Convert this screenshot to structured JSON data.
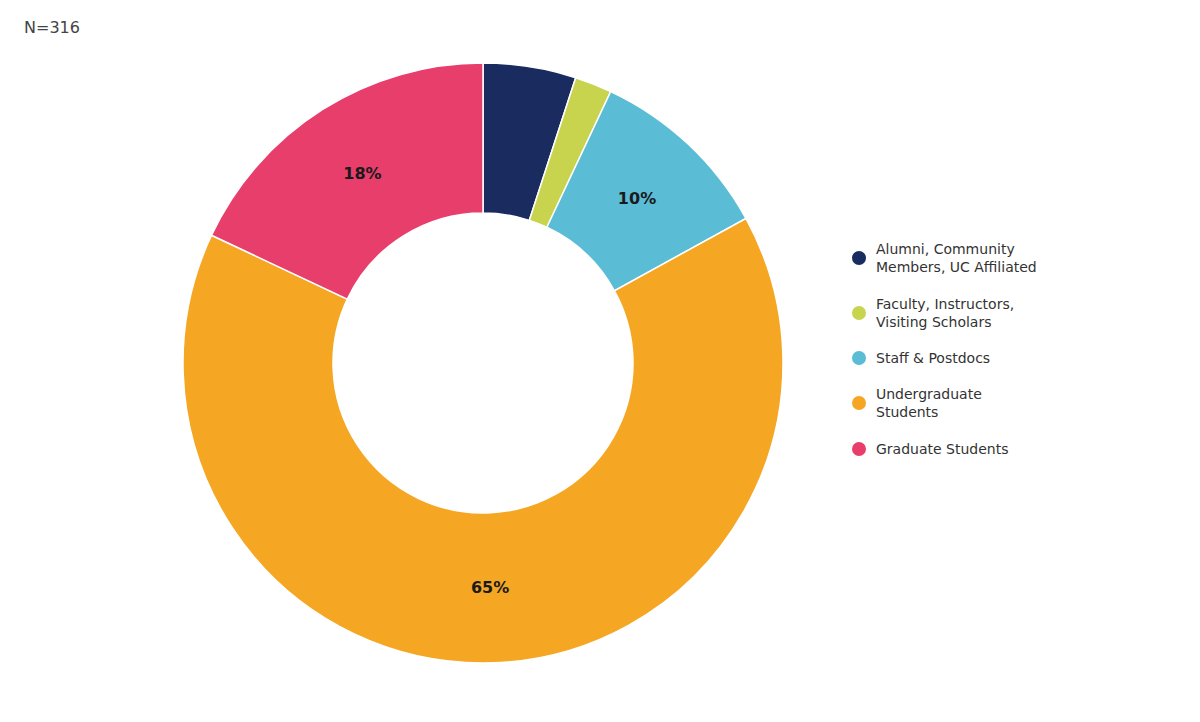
{
  "chart_data": {
    "type": "pie",
    "donut": true,
    "categories": [
      "Alumni, Community\nMembers, UC Affiliated",
      "Faculty, Instructors,\nVisiting Scholars",
      "Staff & Postdocs",
      "Undergraduate\nStudents",
      "Graduate Students"
    ],
    "values": [
      5,
      2,
      10,
      65,
      18
    ],
    "value_labels": [
      null,
      null,
      "10%",
      "65%",
      "18%"
    ],
    "data_labels": true,
    "colors": [
      "#1a2b5f",
      "#c8d44e",
      "#5bbcd6",
      "#f5a623",
      "#e83e6c"
    ],
    "legend": "right",
    "annotations": [
      "N=316"
    ]
  }
}
